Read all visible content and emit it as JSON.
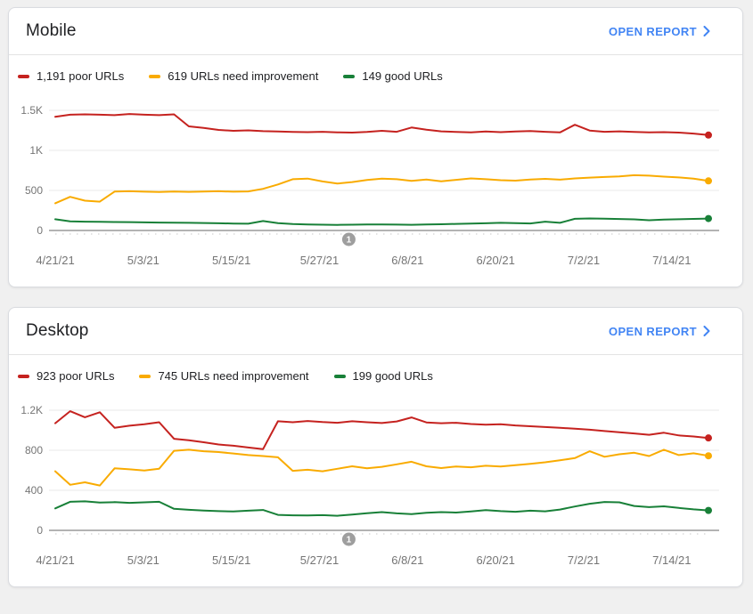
{
  "colors": {
    "poor": "#c5221f",
    "needs_improvement": "#f9ab00",
    "good": "#188038",
    "link": "#4285f4",
    "grid": "#e8e8e8",
    "axis": "#9a9a9a",
    "tick_dots": "#dcdcdc",
    "marker": "#9e9e9e",
    "text": "#202124",
    "axis_label": "#757575"
  },
  "cards": [
    {
      "title": "Mobile",
      "open_report_label": "OPEN REPORT",
      "legend": [
        {
          "label": "1,191 poor URLs",
          "color_key": "poor"
        },
        {
          "label": "619 URLs need improvement",
          "color_key": "needs_improvement"
        },
        {
          "label": "149 good URLs",
          "color_key": "good"
        }
      ]
    },
    {
      "title": "Desktop",
      "open_report_label": "OPEN REPORT",
      "legend": [
        {
          "label": "923 poor URLs",
          "color_key": "poor"
        },
        {
          "label": "745 URLs need improvement",
          "color_key": "needs_improvement"
        },
        {
          "label": "199 good URLs",
          "color_key": "good"
        }
      ]
    }
  ],
  "chart_data": [
    {
      "type": "line",
      "title": "Mobile Core Web Vitals URLs over time",
      "xlabel": "",
      "ylabel": "",
      "ylim": [
        0,
        1500
      ],
      "grid": true,
      "legend_position": "top",
      "x_tick_labels": [
        "4/21/21",
        "5/3/21",
        "5/15/21",
        "5/27/21",
        "6/8/21",
        "6/20/21",
        "7/2/21",
        "7/14/21"
      ],
      "x_tick_days": [
        0,
        12,
        24,
        36,
        48,
        60,
        72,
        84
      ],
      "total_days": 89,
      "y_ticks": [
        {
          "v": 0,
          "label": "0"
        },
        {
          "v": 500,
          "label": "500"
        },
        {
          "v": 1000,
          "label": "1K"
        },
        {
          "v": 1500,
          "label": "1.5K"
        }
      ],
      "annotation": {
        "label": "1",
        "day": 40
      },
      "series": [
        {
          "name": "poor URLs",
          "color_key": "poor",
          "current": 1191,
          "values": [
            1420,
            1445,
            1450,
            1445,
            1440,
            1455,
            1445,
            1440,
            1450,
            1300,
            1280,
            1255,
            1245,
            1250,
            1240,
            1235,
            1230,
            1228,
            1232,
            1226,
            1222,
            1230,
            1245,
            1232,
            1285,
            1258,
            1238,
            1230,
            1226,
            1235,
            1228,
            1235,
            1242,
            1232,
            1224,
            1320,
            1248,
            1232,
            1238,
            1230,
            1224,
            1228,
            1222,
            1210,
            1191
          ]
        },
        {
          "name": "URLs need improvement",
          "color_key": "needs_improvement",
          "current": 619,
          "values": [
            340,
            420,
            372,
            360,
            485,
            490,
            484,
            480,
            486,
            482,
            487,
            490,
            484,
            488,
            520,
            575,
            640,
            648,
            612,
            585,
            605,
            630,
            648,
            640,
            620,
            636,
            615,
            632,
            650,
            640,
            628,
            622,
            636,
            644,
            634,
            650,
            660,
            668,
            676,
            690,
            684,
            672,
            662,
            648,
            619
          ]
        },
        {
          "name": "good URLs",
          "color_key": "good",
          "current": 149,
          "values": [
            140,
            114,
            110,
            108,
            106,
            104,
            101,
            99,
            97,
            95,
            93,
            90,
            87,
            84,
            118,
            92,
            80,
            75,
            72,
            70,
            72,
            74,
            76,
            73,
            71,
            74,
            78,
            82,
            86,
            90,
            95,
            92,
            88,
            110,
            96,
            145,
            150,
            147,
            143,
            139,
            128,
            135,
            140,
            144,
            149
          ]
        }
      ]
    },
    {
      "type": "line",
      "title": "Desktop Core Web Vitals URLs over time",
      "xlabel": "",
      "ylabel": "",
      "ylim": [
        0,
        1200
      ],
      "grid": true,
      "legend_position": "top",
      "x_tick_labels": [
        "4/21/21",
        "5/3/21",
        "5/15/21",
        "5/27/21",
        "6/8/21",
        "6/20/21",
        "7/2/21",
        "7/14/21"
      ],
      "x_tick_days": [
        0,
        12,
        24,
        36,
        48,
        60,
        72,
        84
      ],
      "total_days": 89,
      "y_ticks": [
        {
          "v": 0,
          "label": "0"
        },
        {
          "v": 400,
          "label": "400"
        },
        {
          "v": 800,
          "label": "800"
        },
        {
          "v": 1200,
          "label": "1.2K"
        }
      ],
      "annotation": {
        "label": "1",
        "day": 40
      },
      "series": [
        {
          "name": "poor URLs",
          "color_key": "poor",
          "current": 923,
          "values": [
            1070,
            1190,
            1130,
            1180,
            1025,
            1045,
            1060,
            1080,
            915,
            900,
            880,
            858,
            845,
            828,
            812,
            1090,
            1080,
            1092,
            1082,
            1075,
            1090,
            1080,
            1072,
            1088,
            1128,
            1078,
            1070,
            1075,
            1062,
            1055,
            1060,
            1048,
            1040,
            1032,
            1025,
            1015,
            1005,
            992,
            980,
            968,
            955,
            975,
            948,
            938,
            923
          ]
        },
        {
          "name": "URLs need improvement",
          "color_key": "needs_improvement",
          "current": 745,
          "values": [
            590,
            455,
            480,
            448,
            620,
            610,
            598,
            615,
            795,
            805,
            790,
            782,
            768,
            752,
            742,
            730,
            595,
            605,
            590,
            615,
            640,
            620,
            635,
            660,
            685,
            640,
            622,
            638,
            630,
            645,
            638,
            652,
            665,
            680,
            700,
            722,
            790,
            735,
            760,
            775,
            742,
            805,
            752,
            770,
            745
          ]
        },
        {
          "name": "good URLs",
          "color_key": "good",
          "current": 199,
          "values": [
            220,
            285,
            290,
            278,
            282,
            275,
            280,
            285,
            215,
            205,
            198,
            192,
            188,
            196,
            204,
            155,
            150,
            148,
            152,
            146,
            158,
            172,
            182,
            170,
            162,
            175,
            182,
            178,
            188,
            202,
            192,
            186,
            196,
            190,
            208,
            238,
            266,
            284,
            280,
            244,
            232,
            240,
            224,
            210,
            199
          ]
        }
      ]
    }
  ]
}
